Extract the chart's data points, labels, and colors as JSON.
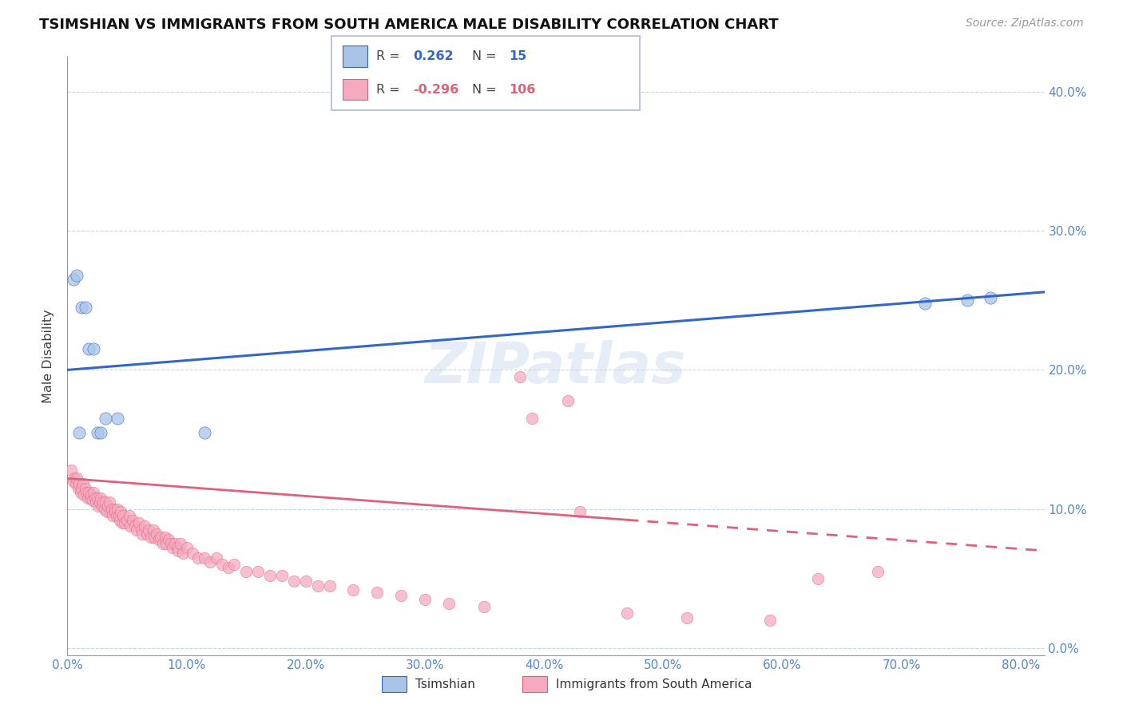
{
  "title": "TSIMSHIAN VS IMMIGRANTS FROM SOUTH AMERICA MALE DISABILITY CORRELATION CHART",
  "source": "Source: ZipAtlas.com",
  "ylabel": "Male Disability",
  "xlim": [
    0.0,
    0.82
  ],
  "ylim": [
    -0.005,
    0.425
  ],
  "r_tsimshian": 0.262,
  "n_tsimshian": 15,
  "r_immigrants": -0.296,
  "n_immigrants": 106,
  "legend_label_1": "Tsimshian",
  "legend_label_2": "Immigrants from South America",
  "tsimshian_color": "#aac4e8",
  "immigrants_color": "#f5aabf",
  "tsimshian_line_color": "#3366cc",
  "immigrants_line_color": "#e0607a",
  "watermark": "ZIPatlas",
  "tsimshian_x": [
    0.005,
    0.008,
    0.01,
    0.012,
    0.015,
    0.018,
    0.022,
    0.025,
    0.028,
    0.032,
    0.042,
    0.115,
    0.72,
    0.755,
    0.775
  ],
  "tsimshian_y": [
    0.265,
    0.268,
    0.155,
    0.245,
    0.245,
    0.215,
    0.215,
    0.155,
    0.155,
    0.165,
    0.165,
    0.155,
    0.248,
    0.25,
    0.252
  ],
  "imm_x_dense": [
    0.003,
    0.005,
    0.006,
    0.007,
    0.008,
    0.009,
    0.01,
    0.011,
    0.012,
    0.013,
    0.014,
    0.015,
    0.016,
    0.017,
    0.018,
    0.019,
    0.02,
    0.021,
    0.022,
    0.023,
    0.024,
    0.025,
    0.026,
    0.027,
    0.028,
    0.029,
    0.03,
    0.031,
    0.032,
    0.033,
    0.034,
    0.035,
    0.036,
    0.037,
    0.038,
    0.039,
    0.04,
    0.041,
    0.042,
    0.043,
    0.044,
    0.045,
    0.046,
    0.047,
    0.048,
    0.05,
    0.052,
    0.053,
    0.055,
    0.057,
    0.058,
    0.06,
    0.062,
    0.063,
    0.065,
    0.067,
    0.068,
    0.07,
    0.072,
    0.073,
    0.075,
    0.077,
    0.078,
    0.08,
    0.082,
    0.083,
    0.085,
    0.087,
    0.088,
    0.09,
    0.092,
    0.093,
    0.095,
    0.097,
    0.1,
    0.105,
    0.11,
    0.115,
    0.12,
    0.125,
    0.13,
    0.135,
    0.14,
    0.15,
    0.16,
    0.17,
    0.18,
    0.19,
    0.2,
    0.21,
    0.22,
    0.24,
    0.26,
    0.28,
    0.3,
    0.32,
    0.35,
    0.39,
    0.43,
    0.47,
    0.38,
    0.42,
    0.52,
    0.59,
    0.63,
    0.68
  ],
  "imm_y_dense": [
    0.128,
    0.12,
    0.122,
    0.118,
    0.122,
    0.115,
    0.118,
    0.112,
    0.115,
    0.118,
    0.11,
    0.115,
    0.112,
    0.108,
    0.112,
    0.108,
    0.11,
    0.106,
    0.112,
    0.108,
    0.105,
    0.108,
    0.102,
    0.105,
    0.108,
    0.102,
    0.105,
    0.1,
    0.105,
    0.098,
    0.102,
    0.105,
    0.098,
    0.1,
    0.095,
    0.1,
    0.098,
    0.095,
    0.1,
    0.095,
    0.092,
    0.098,
    0.09,
    0.095,
    0.09,
    0.092,
    0.095,
    0.088,
    0.092,
    0.088,
    0.085,
    0.09,
    0.085,
    0.082,
    0.088,
    0.082,
    0.085,
    0.08,
    0.085,
    0.08,
    0.082,
    0.078,
    0.08,
    0.075,
    0.08,
    0.075,
    0.078,
    0.075,
    0.072,
    0.075,
    0.072,
    0.07,
    0.075,
    0.068,
    0.072,
    0.068,
    0.065,
    0.065,
    0.062,
    0.065,
    0.06,
    0.058,
    0.06,
    0.055,
    0.055,
    0.052,
    0.052,
    0.048,
    0.048,
    0.045,
    0.045,
    0.042,
    0.04,
    0.038,
    0.035,
    0.032,
    0.03,
    0.165,
    0.098,
    0.025,
    0.195,
    0.178,
    0.022,
    0.02,
    0.05,
    0.055
  ]
}
